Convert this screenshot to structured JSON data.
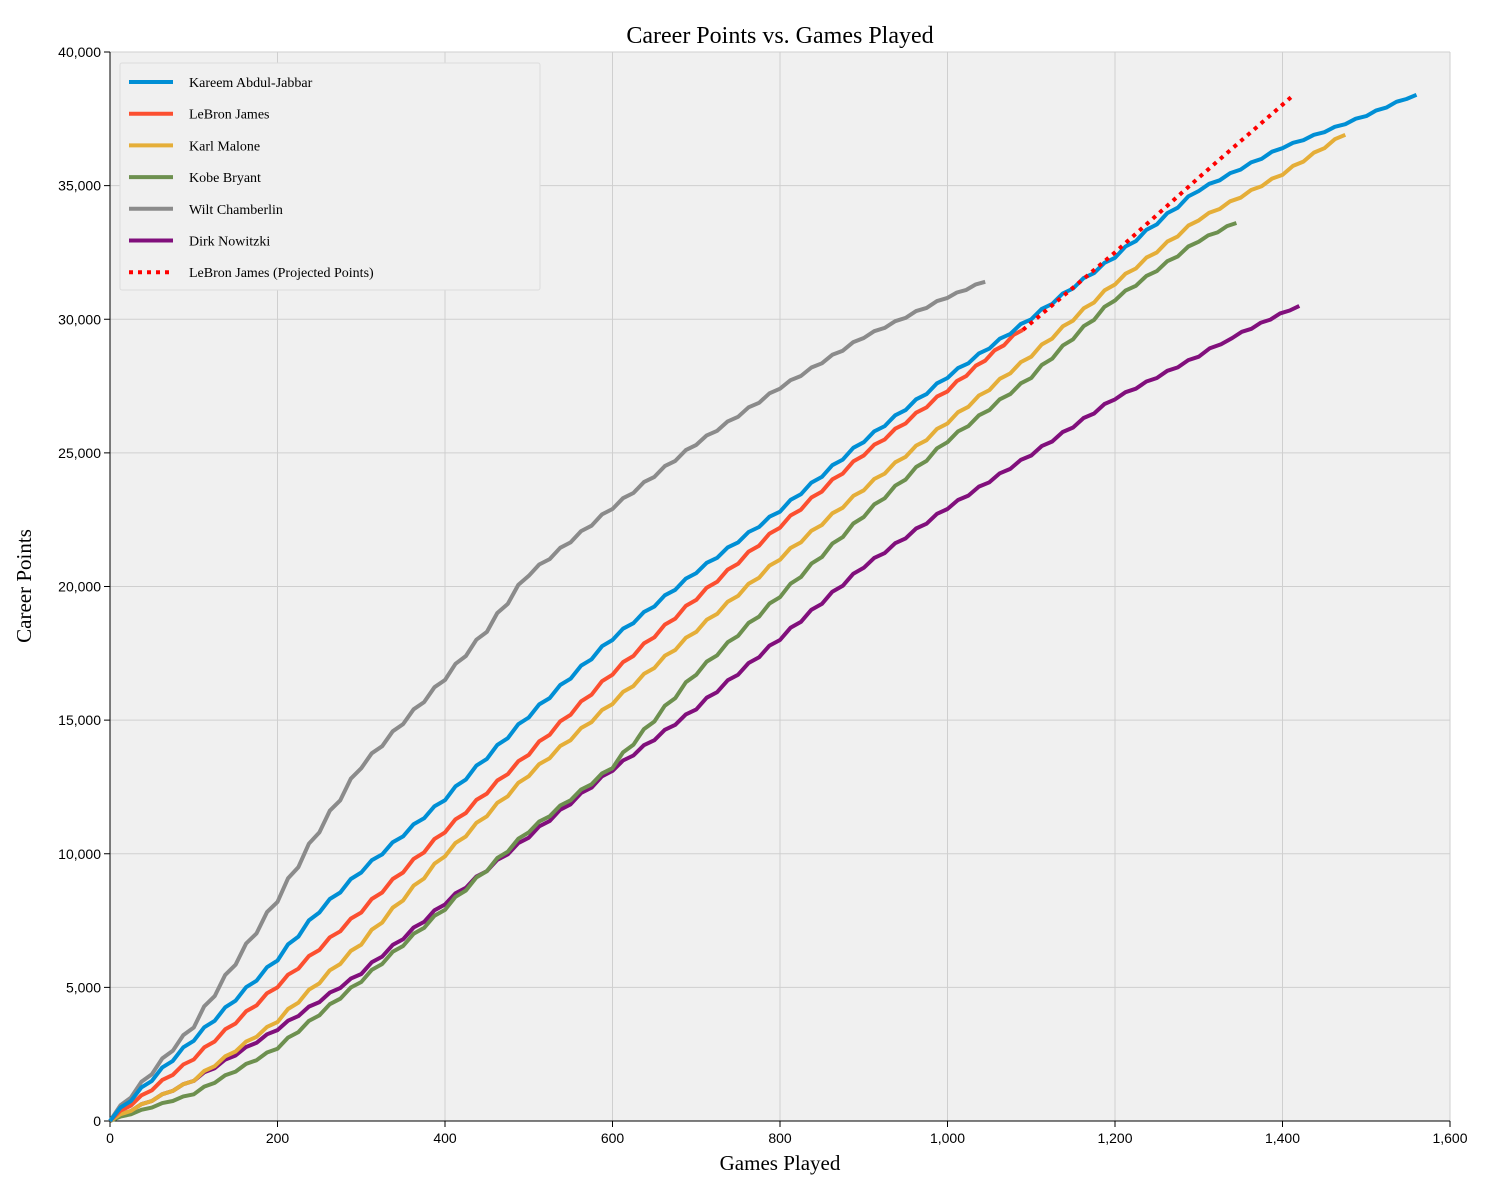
{
  "chart_data": {
    "type": "line",
    "title": "Career Points vs. Games Played",
    "xlabel": "Games Played",
    "ylabel": "Career Points",
    "xlim": [
      0,
      1600
    ],
    "ylim": [
      0,
      40000
    ],
    "xticks": [
      0,
      200,
      400,
      600,
      800,
      1000,
      1200,
      1400,
      1600
    ],
    "xtick_labels": [
      "0",
      "200",
      "400",
      "600",
      "800",
      "1,000",
      "1,200",
      "1,400",
      "1,600"
    ],
    "yticks": [
      0,
      5000,
      10000,
      15000,
      20000,
      25000,
      30000,
      35000,
      40000
    ],
    "ytick_labels": [
      "0",
      "5,000",
      "10,000",
      "15,000",
      "20,000",
      "25,000",
      "30,000",
      "35,000",
      "40,000"
    ],
    "grid": true,
    "legend_position": "top-left",
    "series": [
      {
        "name": "Kareem Abdul-Jabbar",
        "color": "#008fd5",
        "style": "solid",
        "points": [
          [
            0,
            0
          ],
          [
            100,
            3000
          ],
          [
            200,
            6000
          ],
          [
            250,
            7800
          ],
          [
            300,
            9300
          ],
          [
            400,
            12000
          ],
          [
            500,
            15100
          ],
          [
            600,
            18000
          ],
          [
            700,
            20500
          ],
          [
            800,
            22800
          ],
          [
            900,
            25400
          ],
          [
            1000,
            27800
          ],
          [
            1100,
            30000
          ],
          [
            1200,
            32300
          ],
          [
            1300,
            34800
          ],
          [
            1400,
            36400
          ],
          [
            1500,
            37600
          ],
          [
            1560,
            38400
          ]
        ]
      },
      {
        "name": "LeBron James",
        "color": "#fc4f30",
        "style": "solid",
        "points": [
          [
            0,
            0
          ],
          [
            100,
            2300
          ],
          [
            200,
            5000
          ],
          [
            300,
            7800
          ],
          [
            400,
            10800
          ],
          [
            500,
            13700
          ],
          [
            600,
            16700
          ],
          [
            700,
            19500
          ],
          [
            800,
            22200
          ],
          [
            900,
            24900
          ],
          [
            1000,
            27300
          ],
          [
            1090,
            29600
          ]
        ]
      },
      {
        "name": "Karl Malone",
        "color": "#e5ae38",
        "style": "solid",
        "points": [
          [
            0,
            0
          ],
          [
            100,
            1500
          ],
          [
            200,
            3700
          ],
          [
            300,
            6600
          ],
          [
            400,
            9900
          ],
          [
            500,
            12900
          ],
          [
            600,
            15600
          ],
          [
            700,
            18300
          ],
          [
            800,
            21000
          ],
          [
            900,
            23600
          ],
          [
            1000,
            26100
          ],
          [
            1100,
            28600
          ],
          [
            1200,
            31300
          ],
          [
            1300,
            33700
          ],
          [
            1400,
            35400
          ],
          [
            1475,
            36900
          ]
        ]
      },
      {
        "name": "Kobe Bryant",
        "color": "#6d904f",
        "style": "solid",
        "points": [
          [
            0,
            0
          ],
          [
            100,
            1000
          ],
          [
            200,
            2700
          ],
          [
            300,
            5200
          ],
          [
            400,
            7900
          ],
          [
            500,
            10800
          ],
          [
            600,
            13200
          ],
          [
            700,
            16700
          ],
          [
            800,
            19600
          ],
          [
            900,
            22600
          ],
          [
            1000,
            25400
          ],
          [
            1100,
            27800
          ],
          [
            1200,
            30700
          ],
          [
            1300,
            32900
          ],
          [
            1345,
            33600
          ]
        ]
      },
      {
        "name": "Wilt Chamberlin",
        "color": "#8b8b8b",
        "style": "solid",
        "points": [
          [
            0,
            0
          ],
          [
            100,
            3500
          ],
          [
            200,
            8200
          ],
          [
            250,
            10800
          ],
          [
            300,
            13200
          ],
          [
            400,
            16500
          ],
          [
            450,
            18300
          ],
          [
            500,
            20400
          ],
          [
            600,
            22900
          ],
          [
            700,
            25300
          ],
          [
            800,
            27400
          ],
          [
            900,
            29300
          ],
          [
            1000,
            30800
          ],
          [
            1045,
            31400
          ]
        ]
      },
      {
        "name": "Dirk Nowitzki",
        "color": "#810f7c",
        "style": "solid",
        "points": [
          [
            0,
            0
          ],
          [
            100,
            1500
          ],
          [
            200,
            3400
          ],
          [
            300,
            5500
          ],
          [
            400,
            8100
          ],
          [
            500,
            10600
          ],
          [
            600,
            13100
          ],
          [
            700,
            15400
          ],
          [
            800,
            18000
          ],
          [
            900,
            20700
          ],
          [
            1000,
            22900
          ],
          [
            1100,
            24900
          ],
          [
            1200,
            27000
          ],
          [
            1300,
            28600
          ],
          [
            1340,
            29300
          ],
          [
            1420,
            30500
          ]
        ]
      },
      {
        "name": "LeBron James (Projected Points)",
        "color": "#ff0000",
        "style": "dotted",
        "points": [
          [
            1090,
            29600
          ],
          [
            1200,
            32500
          ],
          [
            1300,
            35300
          ],
          [
            1410,
            38300
          ]
        ]
      }
    ]
  }
}
